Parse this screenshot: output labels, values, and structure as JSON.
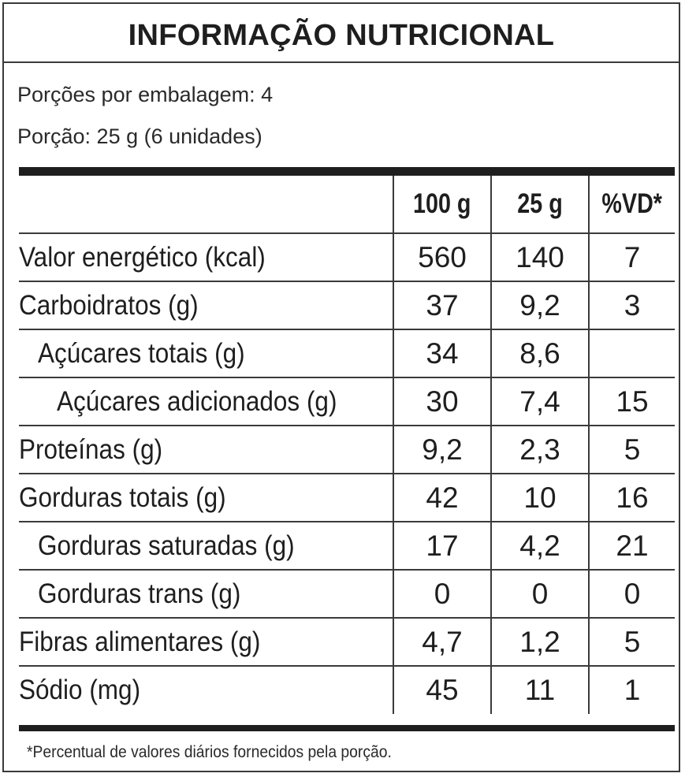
{
  "title": "INFORMAÇÃO NUTRICIONAL",
  "serving": {
    "per_package": "Porções por embalagem: 4",
    "portion": "Porção: 25 g (6 unidades)"
  },
  "columns": [
    "100 g",
    "25 g",
    "%VD*"
  ],
  "rows": [
    {
      "label": "Valor energético (kcal)",
      "per100": "560",
      "per25": "140",
      "vd": "7"
    },
    {
      "label": "Carboidratos (g)",
      "per100": "37",
      "per25": "9,2",
      "vd": "3"
    },
    {
      "label": "Açúcares totais (g)",
      "per100": "34",
      "per25": "8,6",
      "vd": ""
    },
    {
      "label": "Açúcares adicionados (g)",
      "per100": "30",
      "per25": "7,4",
      "vd": "15"
    },
    {
      "label": "Proteínas (g)",
      "per100": "9,2",
      "per25": "2,3",
      "vd": "5"
    },
    {
      "label": "Gorduras totais (g)",
      "per100": "42",
      "per25": "10",
      "vd": "16"
    },
    {
      "label": "Gorduras saturadas (g)",
      "per100": "17",
      "per25": "4,2",
      "vd": "21"
    },
    {
      "label": "Gorduras trans (g)",
      "per100": "0",
      "per25": "0",
      "vd": "0"
    },
    {
      "label": "Fibras alimentares (g)",
      "per100": "4,7",
      "per25": "1,2",
      "vd": "5"
    },
    {
      "label": "Sódio (mg)",
      "per100": "45",
      "per25": "11",
      "vd": "1"
    }
  ],
  "footnote": "*Percentual de valores diários fornecidos pela porção."
}
